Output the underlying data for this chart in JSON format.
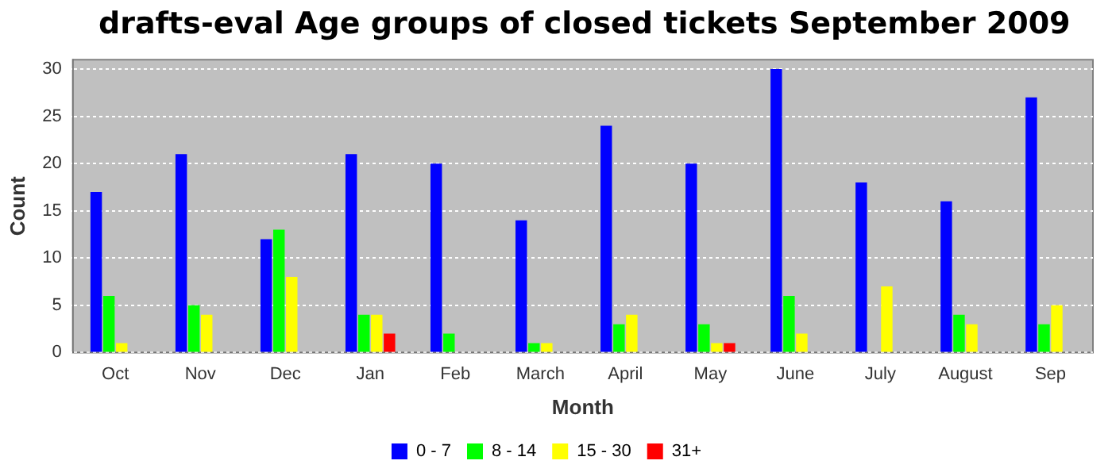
{
  "chart_data": {
    "type": "bar",
    "title": "drafts-eval Age groups of closed tickets September 2009",
    "xlabel": "Month",
    "ylabel": "Count",
    "categories": [
      "Oct",
      "Nov",
      "Dec",
      "Jan",
      "Feb",
      "March",
      "April",
      "May",
      "June",
      "July",
      "August",
      "Sep"
    ],
    "series": [
      {
        "name": "0 - 7",
        "color": "#0000ff",
        "values": [
          17,
          21,
          12,
          21,
          20,
          14,
          24,
          20,
          30,
          18,
          16,
          27
        ]
      },
      {
        "name": "8 - 14",
        "color": "#00ff00",
        "values": [
          6,
          5,
          13,
          4,
          2,
          1,
          3,
          3,
          6,
          0,
          4,
          3
        ]
      },
      {
        "name": "15 - 30",
        "color": "#ffff00",
        "values": [
          1,
          4,
          8,
          4,
          0,
          1,
          4,
          1,
          2,
          7,
          3,
          5
        ]
      },
      {
        "name": "31+",
        "color": "#ff0000",
        "values": [
          0,
          0,
          0,
          2,
          0,
          0,
          0,
          1,
          0,
          0,
          0,
          0
        ]
      }
    ],
    "ylim": [
      0,
      31
    ],
    "yticks": [
      0,
      5,
      10,
      15,
      20,
      25,
      30
    ],
    "grid": "y",
    "legend": "bottom"
  }
}
